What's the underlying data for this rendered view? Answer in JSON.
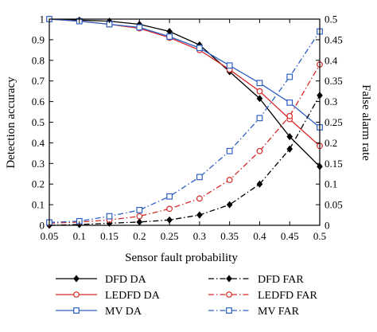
{
  "chart_data": {
    "type": "line",
    "x": [
      0.05,
      0.1,
      0.15,
      0.2,
      0.25,
      0.3,
      0.35,
      0.4,
      0.45,
      0.5
    ],
    "xlabel": "Sensor fault probability",
    "ylabel_left": "Detection accuracy",
    "ylabel_right": "False alarm rate",
    "xlim": [
      0.05,
      0.5
    ],
    "ylim_left": [
      0,
      1
    ],
    "ylim_right": [
      0,
      0.5
    ],
    "x_ticks": [
      "0.05",
      "0.1",
      "0.15",
      "0.2",
      "0.25",
      "0.3",
      "0.35",
      "0.4",
      "0.45",
      "0.5"
    ],
    "y_left_ticks": [
      "0",
      "0.1",
      "0.2",
      "0.3",
      "0.4",
      "0.5",
      "0.6",
      "0.7",
      "0.8",
      "0.9",
      "1"
    ],
    "y_right_ticks": [
      "0",
      "0.05",
      "0.1",
      "0.15",
      "0.2",
      "0.25",
      "0.3",
      "0.35",
      "0.4",
      "0.45",
      "0.5"
    ],
    "grid": false,
    "legend_position": "bottom",
    "series": [
      {
        "name": "DFD DA",
        "axis": "left",
        "color": "#000000",
        "dash": "solid",
        "marker": "diamond",
        "values": [
          1.0,
          0.995,
          0.99,
          0.975,
          0.94,
          0.875,
          0.745,
          0.615,
          0.43,
          0.285
        ]
      },
      {
        "name": "LEDFD DA",
        "axis": "left",
        "color": "#d62828",
        "dash": "solid",
        "marker": "circle",
        "values": [
          1.0,
          0.99,
          0.975,
          0.955,
          0.91,
          0.85,
          0.755,
          0.65,
          0.515,
          0.385
        ]
      },
      {
        "name": "MV DA",
        "axis": "left",
        "color": "#2f5fc4",
        "dash": "solid",
        "marker": "square",
        "values": [
          1.0,
          0.99,
          0.975,
          0.96,
          0.915,
          0.86,
          0.775,
          0.69,
          0.595,
          0.475
        ]
      },
      {
        "name": "DFD FAR",
        "axis": "right",
        "color": "#000000",
        "dash": "dashdot",
        "marker": "diamond",
        "values": [
          0.0,
          0.002,
          0.005,
          0.008,
          0.013,
          0.025,
          0.05,
          0.1,
          0.185,
          0.315
        ]
      },
      {
        "name": "LEDFD FAR",
        "axis": "right",
        "color": "#d62828",
        "dash": "dashdot",
        "marker": "circle",
        "values": [
          0.005,
          0.008,
          0.013,
          0.022,
          0.04,
          0.065,
          0.11,
          0.18,
          0.265,
          0.39
        ]
      },
      {
        "name": "MV FAR",
        "axis": "right",
        "color": "#2f5fc4",
        "dash": "dashdot",
        "marker": "square",
        "values": [
          0.007,
          0.01,
          0.022,
          0.037,
          0.07,
          0.117,
          0.18,
          0.26,
          0.36,
          0.47
        ]
      }
    ]
  }
}
